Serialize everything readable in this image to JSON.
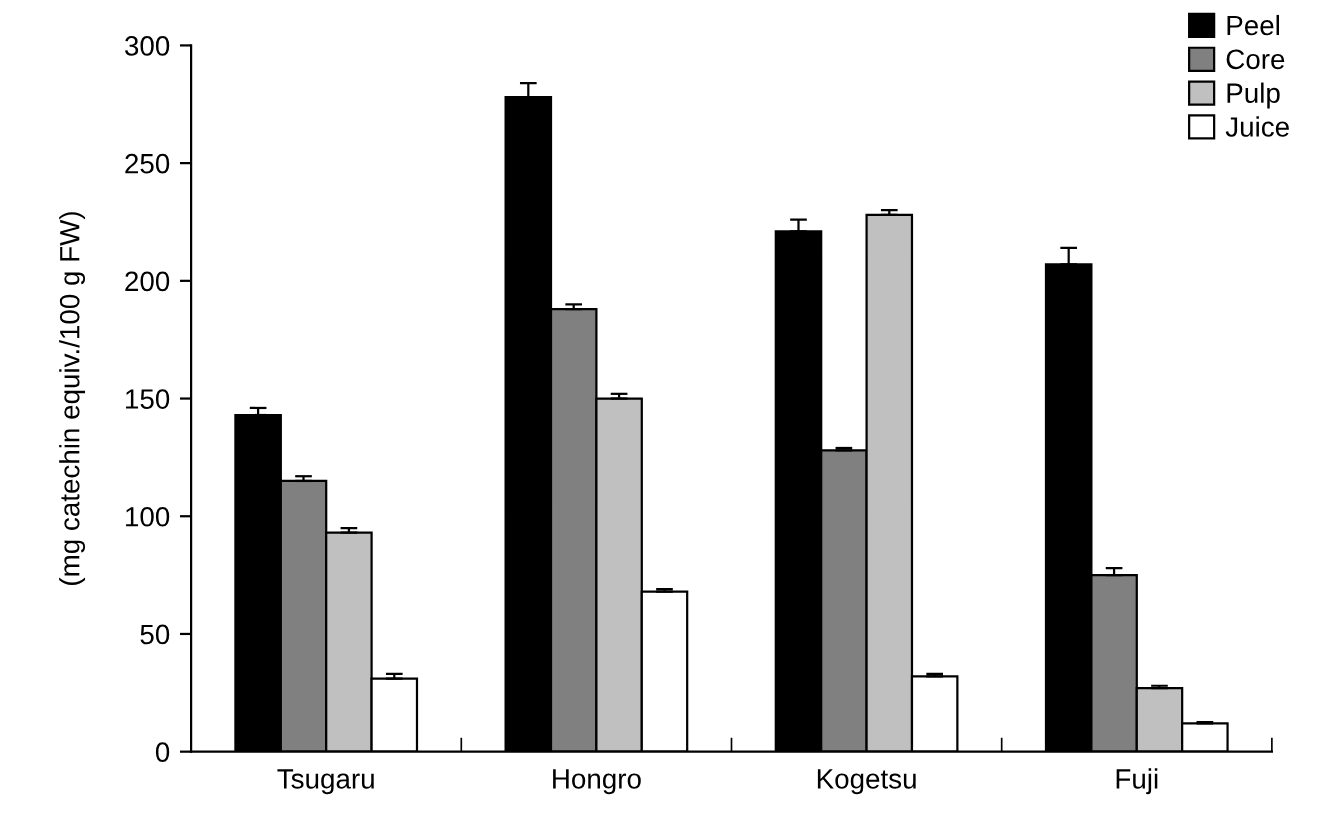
{
  "chart_data": {
    "type": "bar",
    "ylabel": "(mg catechin equiv./100 g FW)",
    "categories": [
      "Tsugaru",
      "Hongro",
      "Kogetsu",
      "Fuji"
    ],
    "series": [
      {
        "name": "Peel",
        "color": "#000000",
        "values": [
          143,
          278,
          221,
          207
        ],
        "errors": [
          [
            143,
            146
          ],
          [
            278,
            284
          ],
          [
            221,
            226
          ],
          [
            207,
            214
          ]
        ]
      },
      {
        "name": "Core",
        "color": "#808080",
        "values": [
          115,
          188,
          128,
          75
        ],
        "errors": [
          [
            115,
            117
          ],
          [
            188,
            190
          ],
          [
            128,
            129
          ],
          [
            75,
            78
          ]
        ]
      },
      {
        "name": "Pulp",
        "color": "#c0c0c0",
        "values": [
          93,
          150,
          228,
          27
        ],
        "errors": [
          [
            93,
            95
          ],
          [
            150,
            152
          ],
          [
            228,
            230
          ],
          [
            27,
            28
          ]
        ]
      },
      {
        "name": "Juice",
        "color": "#ffffff",
        "values": [
          31,
          68,
          32,
          12
        ],
        "errors": [
          [
            31,
            33
          ],
          [
            68,
            69
          ],
          [
            32,
            33
          ],
          [
            12,
            12.5
          ]
        ]
      }
    ],
    "ylim": [
      0,
      300
    ],
    "yticks": [
      0,
      50,
      100,
      150,
      200,
      250,
      300
    ],
    "grid": false,
    "legend": "top right"
  }
}
